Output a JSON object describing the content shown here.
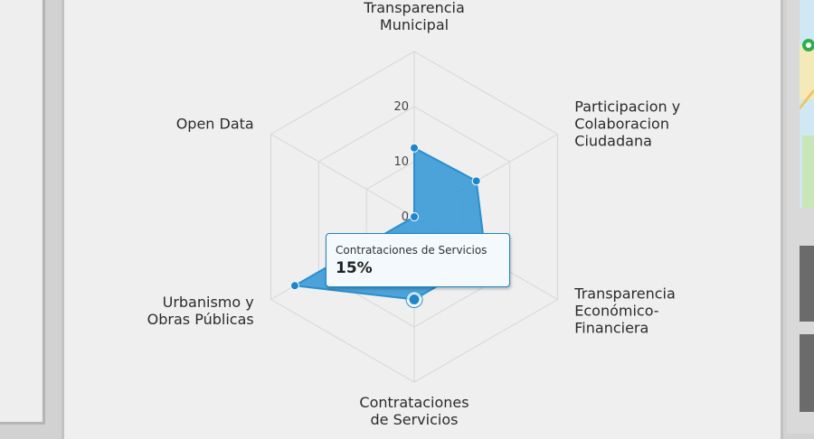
{
  "chart_data": {
    "type": "radar",
    "categories": [
      "Transparencia Municipal",
      "Participacion y Colaboracion Ciudadana",
      "Transparencia Económico-Financiera",
      "Contrataciones de Servicios",
      "Urbanismo y Obras Públicas",
      "Open Data"
    ],
    "category_lines": [
      [
        "Transparencia",
        "Municipal"
      ],
      [
        "Participacion y",
        "Colaboracion",
        "Ciudadana"
      ],
      [
        "Transparencia",
        "Económico-",
        "Financiera"
      ],
      [
        "Contrataciones",
        "de Servicios"
      ],
      [
        "Urbanismo y",
        "Obras Públicas"
      ],
      [
        "Open Data"
      ]
    ],
    "values": [
      12.5,
      13,
      15,
      15,
      25,
      0
    ],
    "ticks": [
      0,
      10,
      20
    ],
    "rmax": 30,
    "series_color": "#2a8fd0",
    "series_fill": "#3a9ad6"
  },
  "tooltip": {
    "category": "Contrataciones de Servicios",
    "value": "15%"
  },
  "colors": {
    "grid": "#d6d6d6",
    "accent": "#1b86c8"
  }
}
